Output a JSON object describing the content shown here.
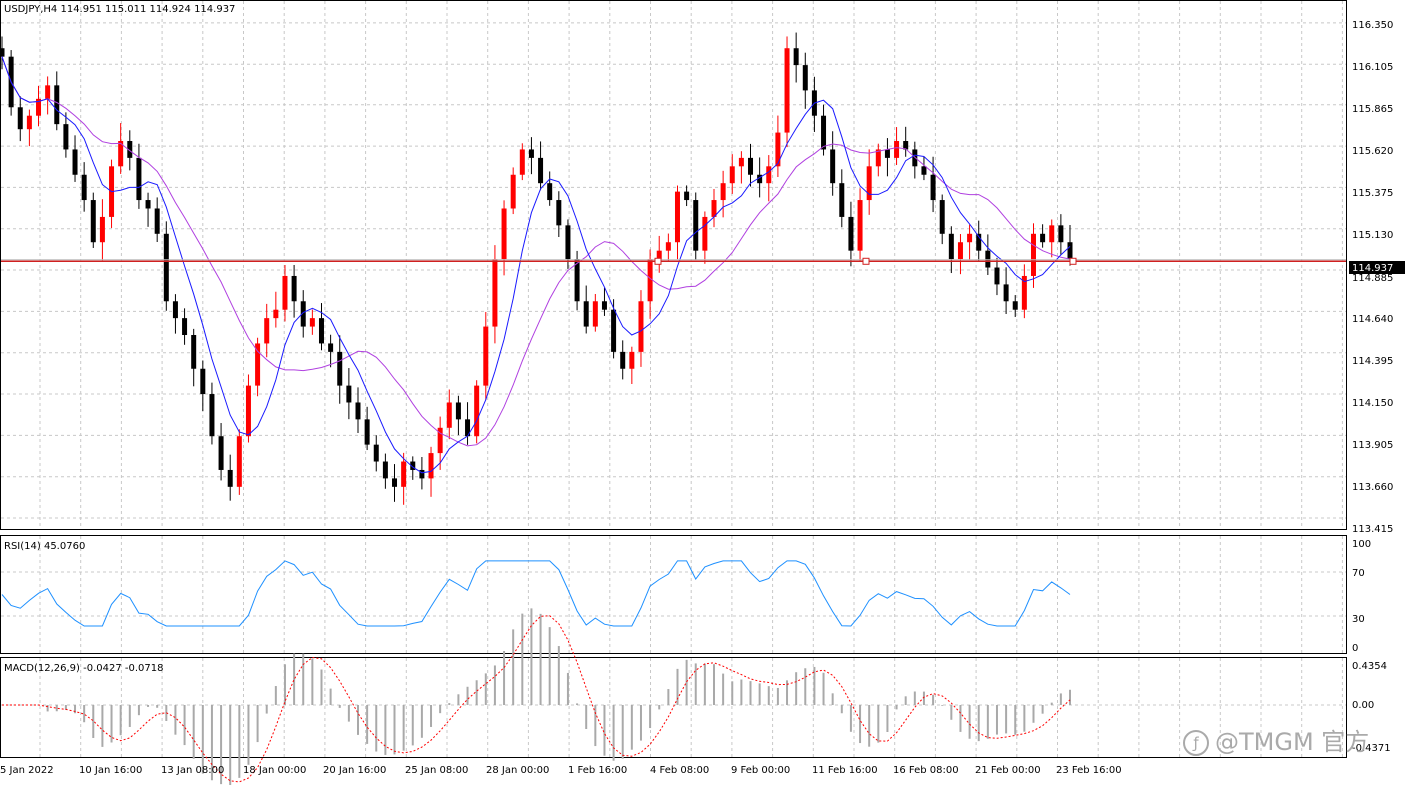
{
  "chart_header": "USDJPY,H4  114.951 115.011 114.924 114.937",
  "current_price_label": "114.937",
  "price_axis_labels": [
    "116.350",
    "116.105",
    "115.865",
    "115.620",
    "115.375",
    "115.130",
    "114.885",
    "114.640",
    "114.395",
    "114.150",
    "113.905",
    "113.660",
    "113.415"
  ],
  "time_axis_labels": [
    "5 Jan 2022",
    "10 Jan 16:00",
    "13 Jan 08:00",
    "18 Jan 00:00",
    "20 Jan 16:00",
    "25 Jan 08:00",
    "28 Jan 00:00",
    "1 Feb 16:00",
    "4 Feb 08:00",
    "9 Feb 00:00",
    "11 Feb 16:00",
    "16 Feb 08:00",
    "21 Feb 00:00",
    "23 Feb 16:00"
  ],
  "rsi": {
    "title": "RSI(14) 45.0760",
    "levels": [
      "100",
      "70",
      "30",
      "0"
    ]
  },
  "macd": {
    "title": "MACD(12,26,9) -0.0427 -0.0718",
    "levels": [
      "0.4354",
      "0.00",
      "-0.4371"
    ]
  },
  "watermark": "@TMGM 官方",
  "watermark_icon": "tmgm-logo-icon",
  "colors": {
    "bull": "#ff0000",
    "bear": "#000000",
    "ma_fast": "#1a1aff",
    "ma_slow": "#b040e0",
    "rsi_line": "#1e90ff",
    "macd_signal": "#ff0000",
    "macd_hist": "#a9a9a9",
    "hline": "#d02020"
  },
  "chart_data": {
    "type": "candlestick",
    "symbol": "USDJPY",
    "timeframe": "H4",
    "ylim": [
      113.35,
      116.48
    ],
    "closes": [
      116.15,
      115.85,
      115.72,
      115.8,
      115.9,
      115.98,
      115.75,
      115.6,
      115.45,
      115.3,
      115.05,
      115.2,
      115.5,
      115.65,
      115.55,
      115.3,
      115.25,
      115.1,
      114.7,
      114.6,
      114.5,
      114.3,
      114.15,
      113.9,
      113.7,
      113.6,
      113.9,
      114.2,
      114.45,
      114.6,
      114.65,
      114.85,
      114.7,
      114.55,
      114.6,
      114.45,
      114.4,
      114.2,
      114.1,
      114.0,
      113.85,
      113.75,
      113.65,
      113.6,
      113.75,
      113.7,
      113.65,
      113.8,
      113.95,
      114.1,
      114.0,
      113.9,
      114.2,
      114.55,
      114.95,
      115.25,
      115.45,
      115.6,
      115.55,
      115.4,
      115.3,
      115.15,
      114.95,
      114.7,
      114.55,
      114.7,
      114.65,
      114.4,
      114.3,
      114.4,
      114.7,
      114.95,
      115.0,
      115.05,
      115.35,
      115.3,
      115.0,
      115.2,
      115.3,
      115.4,
      115.5,
      115.55,
      115.45,
      115.4,
      115.5,
      115.7,
      116.2,
      116.1,
      115.95,
      115.8,
      115.6,
      115.4,
      115.2,
      115.0,
      115.3,
      115.5,
      115.6,
      115.55,
      115.65,
      115.6,
      115.5,
      115.45,
      115.3,
      115.1,
      114.95,
      115.05,
      115.1,
      115.0,
      114.9,
      114.8,
      114.7,
      114.65,
      114.85,
      115.1,
      115.05,
      115.15,
      115.05,
      114.95
    ],
    "rsi_current": 45.076,
    "macd_main": -0.0427,
    "macd_signal": -0.0718,
    "hline": 114.937
  }
}
